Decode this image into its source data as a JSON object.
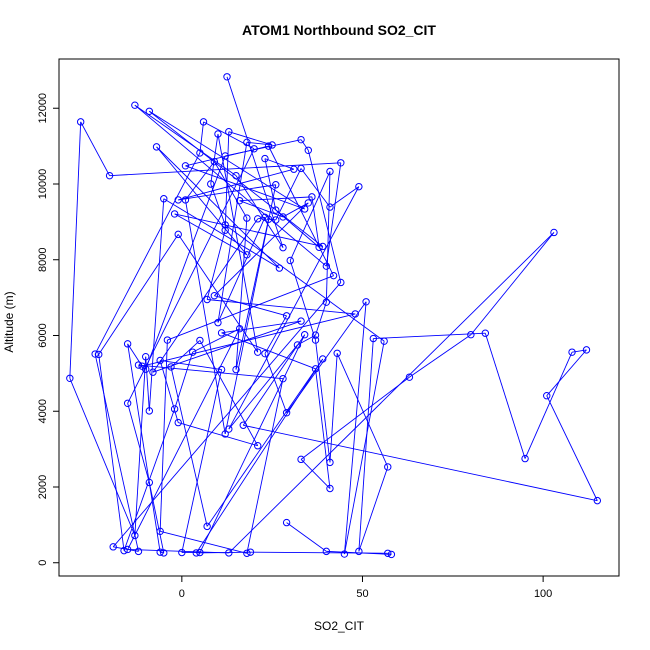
{
  "chart_data": {
    "type": "line",
    "title": "ATOM1 Northbound SO2_CIT",
    "xlabel": "SO2_CIT",
    "ylabel": "Altitude (m)",
    "xlim": [
      -34,
      121
    ],
    "ylim": [
      -350,
      13300
    ],
    "xticks": [
      0,
      50,
      100
    ],
    "yticks": [
      0,
      2000,
      4000,
      6000,
      8000,
      10000,
      12000
    ],
    "grid": false,
    "legend": "none",
    "colors": {
      "series": "#0000ff",
      "axes": "#000000",
      "background": "#ffffff"
    },
    "series": [
      {
        "points": [
          [
            12.5,
            12830
          ],
          [
            28,
            8320
          ],
          [
            15,
            10220
          ],
          [
            -13,
            12080
          ],
          [
            40,
            7830
          ],
          [
            44,
            10560
          ],
          [
            -20,
            10220
          ],
          [
            -28,
            11640
          ],
          [
            -31,
            4870
          ],
          [
            -13,
            720
          ],
          [
            -10,
            5440
          ],
          [
            -9,
            4010
          ],
          [
            -5,
            9610
          ],
          [
            27,
            7780
          ],
          [
            -7,
            10980
          ],
          [
            18,
            8130
          ],
          [
            -2,
            9210
          ],
          [
            39,
            8350
          ],
          [
            -9,
            11920
          ],
          [
            34,
            9340
          ],
          [
            1,
            10480
          ],
          [
            24,
            11000
          ],
          [
            42,
            7580
          ],
          [
            -4,
            5880
          ],
          [
            -6,
            830
          ],
          [
            18,
            250
          ],
          [
            28,
            4860
          ],
          [
            -12,
            5220
          ],
          [
            -10,
            5110
          ],
          [
            12,
            10740
          ],
          [
            33,
            11170
          ],
          [
            35,
            10890
          ],
          [
            44,
            7400
          ],
          [
            -19,
            420
          ],
          [
            -12,
            300
          ],
          [
            -24,
            5510
          ],
          [
            5,
            10820
          ],
          [
            6,
            11640
          ],
          [
            20,
            10930
          ],
          [
            -15,
            4210
          ],
          [
            -9,
            2120
          ],
          [
            -5,
            260
          ],
          [
            -6,
            280
          ],
          [
            -15,
            5780
          ],
          [
            -11,
            5190
          ],
          [
            48,
            6570
          ],
          [
            7,
            6950
          ],
          [
            12,
            8780
          ],
          [
            13,
            11380
          ],
          [
            25,
            11030
          ],
          [
            18,
            11100
          ],
          [
            10,
            6340
          ],
          [
            23,
            9120
          ],
          [
            21,
            9080
          ],
          [
            -8,
            5030
          ],
          [
            33,
            6380
          ],
          [
            11,
            6070
          ],
          [
            37,
            5120
          ],
          [
            41,
            1960
          ],
          [
            33,
            2730
          ],
          [
            63,
            4900
          ],
          [
            80,
            6020
          ],
          [
            103,
            8720
          ],
          [
            13,
            260
          ],
          [
            -15,
            350
          ],
          [
            16,
            6180
          ],
          [
            3,
            5560
          ],
          [
            -2,
            4060
          ],
          [
            -16,
            320
          ],
          [
            -23,
            5500
          ],
          [
            -1,
            8670
          ],
          [
            21,
            5560
          ],
          [
            10,
            11320
          ],
          [
            8,
            10000
          ],
          [
            12,
            8920
          ],
          [
            56,
            5850
          ],
          [
            45,
            230
          ],
          [
            51,
            6890
          ],
          [
            29,
            3960
          ],
          [
            23,
            5520
          ],
          [
            29,
            6520
          ],
          [
            9,
            7050
          ],
          [
            35,
            9500
          ],
          [
            28,
            9130
          ],
          [
            16,
            9560
          ],
          [
            36,
            9660
          ],
          [
            38,
            8330
          ],
          [
            26,
            9310
          ],
          [
            23,
            10670
          ],
          [
            31,
            10390
          ],
          [
            -1,
            9580
          ],
          [
            26,
            9980
          ],
          [
            12,
            3400
          ],
          [
            1,
            9580
          ],
          [
            9,
            10590
          ],
          [
            18,
            9100
          ],
          [
            15,
            5100
          ],
          [
            24,
            9070
          ],
          [
            26,
            9050
          ],
          [
            33,
            10410
          ],
          [
            41,
            9390
          ],
          [
            49,
            9930
          ],
          [
            13,
            3530
          ],
          [
            32,
            5750
          ],
          [
            37,
            6010
          ],
          [
            40,
            6880
          ],
          [
            41,
            10330
          ],
          [
            30,
            7980
          ],
          [
            37,
            5880
          ],
          [
            41,
            2650
          ],
          [
            43,
            5530
          ],
          [
            57,
            2530
          ],
          [
            49,
            300
          ],
          [
            53,
            5920
          ],
          [
            84,
            6060
          ],
          [
            95,
            2750
          ],
          [
            108,
            5560
          ],
          [
            112,
            5620
          ],
          [
            101,
            4410
          ],
          [
            115,
            1640
          ],
          [
            17,
            3630
          ],
          [
            34,
            6020
          ],
          [
            5,
            270
          ],
          [
            0,
            270
          ],
          [
            11,
            5100
          ],
          [
            -6,
            5340
          ],
          [
            -1,
            3700
          ],
          [
            21,
            3090
          ],
          [
            5,
            5870
          ],
          [
            -3,
            5170
          ],
          [
            7,
            960
          ],
          [
            39,
            5380
          ],
          [
            4,
            260
          ],
          [
            19,
            280
          ],
          [
            57,
            250
          ],
          [
            58,
            220
          ],
          [
            40,
            300
          ],
          [
            29,
            1060
          ]
        ]
      }
    ]
  }
}
